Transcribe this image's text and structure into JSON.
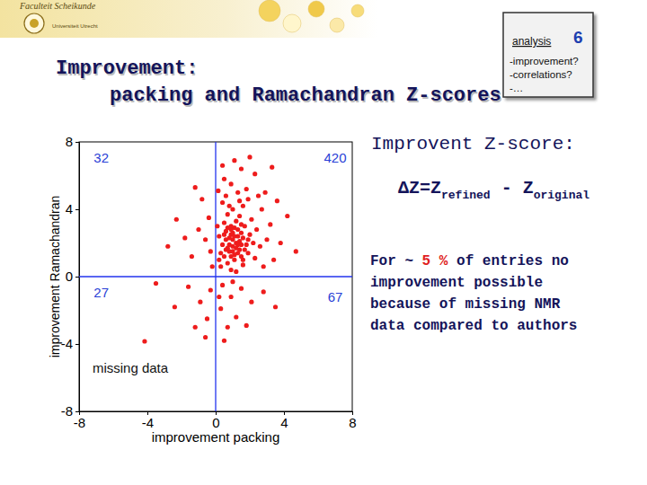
{
  "chart_data": {
    "type": "scatter",
    "xlabel": "improvement packing",
    "ylabel": "improvement Ramachandran",
    "color": "#ee1c1c",
    "marker": "circle",
    "xlim": [
      -8,
      8
    ],
    "xticks": [
      -8,
      -4,
      0,
      4,
      8
    ],
    "ylim": [
      -8,
      8
    ],
    "yticks": [
      -8,
      -4,
      0,
      4,
      8
    ],
    "vlines": [
      0
    ],
    "hlines": [
      0
    ],
    "x": [
      0.5,
      0.8,
      1.0,
      1.2,
      0.6,
      0.9,
      1.4,
      1.6,
      1.1,
      0.7,
      1.3,
      0.4,
      1.8,
      1.5,
      0.9,
      1.2,
      0.6,
      2.0,
      1.7,
      0.3,
      1.0,
      1.3,
      0.8,
      1.5,
      1.1,
      0.5,
      1.9,
      2.2,
      0.2,
      1.4,
      0.7,
      1.0,
      1.6,
      0.4,
      2.1,
      2.4,
      2.6,
      0.3,
      0.9,
      1.6,
      2.3,
      1.2,
      0.6,
      1.3,
      0.9,
      1.8,
      2.3,
      1.5,
      0.5,
      2.7,
      3.2,
      3.0,
      2.9,
      3.3,
      3.6,
      4.2,
      4.7,
      3.8,
      3.4,
      2.8,
      0.1,
      0.2,
      0.15,
      1.1,
      2.0,
      0.4,
      2.5,
      1.9,
      1.4,
      0.8,
      0.7,
      1.1,
      1.5,
      0.9,
      1.3,
      1.7,
      0.6,
      1.0,
      1.4,
      1.2,
      0.8,
      1.6,
      1.1,
      0.5,
      1.9,
      0.9,
      1.3,
      0.7,
      1.5,
      1.0,
      -0.3,
      -0.6,
      -1.0,
      -1.8,
      -0.4,
      -1.4,
      -2.3,
      -0.8,
      -0.2,
      -2.8,
      -1.2,
      -0.3,
      -0.9,
      -1.6,
      -0.5,
      -2.4,
      -1.2,
      -0.6,
      -4.16,
      -3.5,
      0.4,
      0.9,
      1.5,
      0.3,
      1.2,
      2.1,
      0.7,
      2.8,
      0.5,
      1.8,
      3.5,
      0.2,
      1.0
    ],
    "values": [
      1.2,
      1.5,
      1.8,
      2.0,
      2.2,
      2.5,
      1.6,
      2.3,
      1.0,
      0.8,
      2.8,
      1.9,
      1.9,
      1.2,
      3.0,
      3.3,
      2.7,
      2.5,
      3.0,
      1.4,
      2.2,
      1.4,
      1.9,
      2.6,
      2.9,
      3.2,
      1.4,
      2.0,
      2.4,
      3.6,
      3.7,
      4.0,
      4.2,
      4.4,
      3.4,
      2.8,
      1.8,
      0.6,
      0.4,
      0.7,
      1.1,
      0.3,
      4.8,
      5.0,
      5.5,
      5.2,
      6.1,
      6.4,
      5.8,
      4.0,
      3.1,
      2.2,
      5.0,
      6.5,
      4.5,
      3.6,
      1.5,
      2.0,
      1.0,
      0.6,
      3.0,
      1.0,
      5.1,
      6.9,
      7.1,
      6.6,
      4.8,
      4.6,
      4.5,
      4.2,
      1.7,
      1.3,
      1.9,
      2.8,
      2.4,
      1.6,
      1.6,
      2.6,
      2.1,
      1.7,
      2.3,
      1.0,
      2.4,
      2.5,
      2.2,
      1.2,
      1.9,
      2.9,
      3.1,
      1.5,
      1.5,
      2.2,
      2.8,
      2.3,
      3.5,
      1.2,
      3.4,
      4.6,
      0.6,
      1.8,
      5.3,
      -0.8,
      -1.5,
      -0.6,
      -2.5,
      -1.8,
      -3.0,
      -3.6,
      -3.84,
      -0.4,
      -0.5,
      -1.2,
      -0.7,
      -1.9,
      -2.4,
      -1.5,
      -3.0,
      -0.9,
      -3.8,
      -2.9,
      -1.8,
      -1.2,
      -0.3
    ],
    "annotations": [
      {
        "text": "32",
        "x": -6.7,
        "y": 7.0,
        "color": "#2a3fd6"
      },
      {
        "text": "420",
        "x": 7.0,
        "y": 7.0,
        "color": "#2a3fd6"
      },
      {
        "text": "27",
        "x": -6.7,
        "y": -1.0,
        "color": "#2a3fd6"
      },
      {
        "text": "67",
        "x": 7.0,
        "y": -1.3,
        "color": "#2a3fd6"
      },
      {
        "text": "missing data",
        "x": -5.0,
        "y": -5.5,
        "color": "#111111"
      }
    ]
  },
  "slide": {
    "logo_top": "Faculteit Scheikunde",
    "logo_bottom": "Universiteit Utrecht",
    "title": [
      "Improvement:",
      "packing and Ramachandran Z-scores"
    ],
    "box": {
      "heading": "analysis",
      "number": 6,
      "items": [
        "-improvement?",
        "-correlations?",
        "-…"
      ]
    },
    "definition": {
      "heading": "Improvent Z-score:",
      "formula": [
        {
          "text": "ΔZ=Z"
        },
        {
          "text": "refined",
          "sub": true
        },
        {
          "text": " - Z"
        },
        {
          "text": "original",
          "sub": true
        }
      ]
    },
    "note": [
      [
        {
          "text": "For ~ "
        },
        {
          "text": "5 %",
          "color": "#e02020"
        },
        {
          "text": " of entries no"
        }
      ],
      [
        {
          "text": "improvement possible"
        }
      ],
      [
        {
          "text": "because of missing NMR"
        }
      ],
      [
        {
          "text": "data compared to authors"
        }
      ]
    ]
  }
}
